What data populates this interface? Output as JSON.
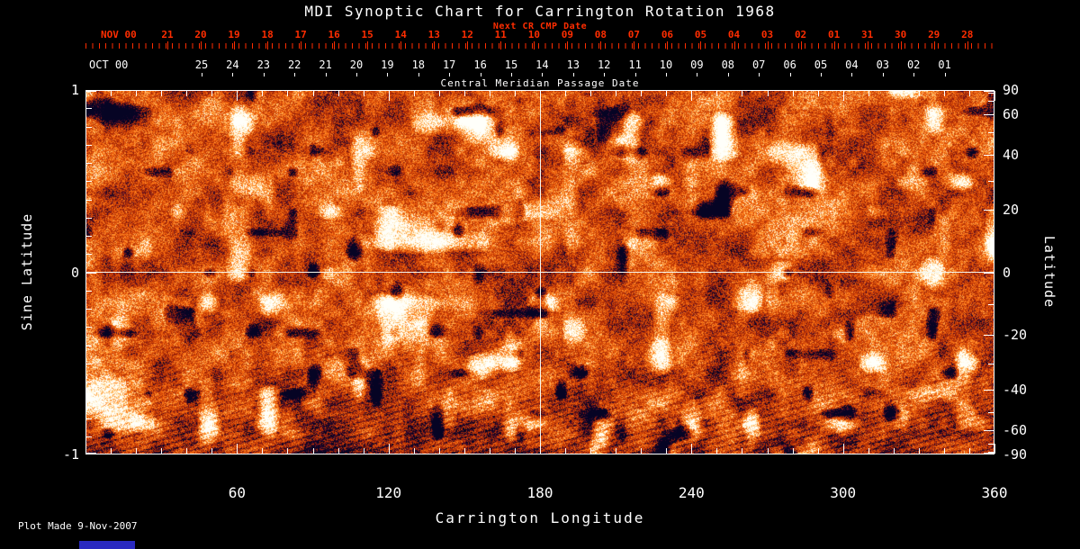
{
  "title": "MDI Synoptic Chart for Carrington Rotation 1968",
  "top_axis": {
    "next_cr_label": "Next CR CMP Date",
    "red_month": "NOV 00",
    "red_days": [
      "21",
      "20",
      "19",
      "18",
      "17",
      "16",
      "15",
      "14",
      "13",
      "12",
      "11",
      "10",
      "09",
      "08",
      "07",
      "06",
      "05",
      "04",
      "03",
      "02",
      "01",
      "31",
      "30",
      "29",
      "28"
    ],
    "white_month": "OCT 00",
    "white_days": [
      "25",
      "24",
      "23",
      "22",
      "21",
      "20",
      "19",
      "18",
      "17",
      "16",
      "15",
      "14",
      "13",
      "12",
      "11",
      "10",
      "09",
      "08",
      "07",
      "06",
      "05",
      "04",
      "03",
      "02",
      "01"
    ],
    "cmp_axis_label": "Central Meridian Passage Date"
  },
  "left_axis": {
    "label": "Sine Latitude",
    "ticks": [
      "1",
      "0",
      "-1"
    ]
  },
  "right_axis": {
    "label": "Latitude",
    "ticks": [
      "90",
      "60",
      "40",
      "20",
      "0",
      "-20",
      "-40",
      "-60",
      "-90"
    ],
    "minor_ticks_deg": [
      80,
      70,
      50,
      30,
      10,
      -10,
      -30,
      -50,
      -70,
      -80
    ]
  },
  "bottom_axis": {
    "label": "Carrington Longitude",
    "ticks": [
      60,
      120,
      180,
      240,
      300,
      360
    ]
  },
  "footer": {
    "plot_made": "Plot Made  9-Nov-2007"
  },
  "colors": {
    "background": "#000000",
    "axis_red": "#ff2d00",
    "axis_white": "#ffffff",
    "artifact_blue": "#2a2ac0"
  },
  "chart_data": {
    "type": "heatmap",
    "title": "MDI Synoptic Chart for Carrington Rotation 1968",
    "xlabel": "Carrington Longitude",
    "ylabel_left": "Sine Latitude",
    "ylabel_right": "Latitude",
    "x_range": [
      0,
      360
    ],
    "sine_latitude_range": [
      -1,
      1
    ],
    "x_ticks": [
      60,
      120,
      180,
      240,
      300,
      360
    ],
    "sine_latitude_ticks": [
      1,
      0,
      -1
    ],
    "latitude_ticks_deg": [
      90,
      60,
      40,
      20,
      0,
      -20,
      -40,
      -60,
      -90
    ],
    "grid_crosshair": {
      "longitude": 180,
      "sine_latitude": 0
    },
    "top_time_axes": [
      {
        "label": "Next CR CMP Date",
        "month": "NOV 00",
        "days": [
          21,
          20,
          19,
          18,
          17,
          16,
          15,
          14,
          13,
          12,
          11,
          10,
          9,
          8,
          7,
          6,
          5,
          4,
          3,
          2,
          1,
          31,
          30,
          29,
          28
        ],
        "color": "#ff2d00"
      },
      {
        "label": "Central Meridian Passage Date",
        "month": "OCT 00",
        "days": [
          25,
          24,
          23,
          22,
          21,
          20,
          19,
          18,
          17,
          16,
          15,
          14,
          13,
          12,
          11,
          10,
          9,
          8,
          7,
          6,
          5,
          4,
          3,
          2,
          1
        ],
        "color": "#ffffff"
      }
    ],
    "content_description": "SOHO/MDI line-of-sight magnetic field synoptic map for Carrington rotation 1968. Speckled orange/red field with bright white patches (positive polarity active regions), dark purple/black patches (negative polarity), white reference crosshair at longitude 180 and sine latitude 0, and a darker streaked band toward the south pole.",
    "palette_stops": [
      {
        "t": 0.0,
        "color": "#060424"
      },
      {
        "t": 0.1,
        "color": "#460a30"
      },
      {
        "t": 0.2,
        "color": "#961e08"
      },
      {
        "t": 0.45,
        "color": "#d84806"
      },
      {
        "t": 0.65,
        "color": "#ff7a18"
      },
      {
        "t": 0.8,
        "color": "#ffb658"
      },
      {
        "t": 0.9,
        "color": "#ffecbe"
      },
      {
        "t": 1.0,
        "color": "#fffffa"
      }
    ]
  }
}
